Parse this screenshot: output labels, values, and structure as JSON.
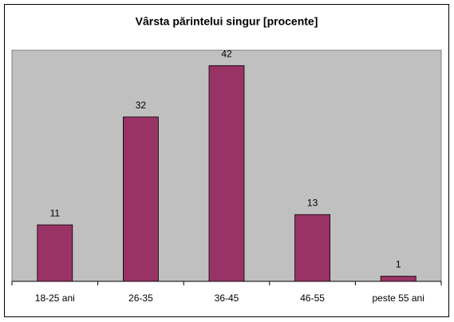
{
  "chart_data": {
    "type": "bar",
    "title": "Vârsta părintelui singur [procente]",
    "categories": [
      "18-25 ani",
      "26-35",
      "36-45",
      "46-55",
      "peste 55 ani"
    ],
    "values": [
      11,
      32,
      42,
      13,
      1
    ],
    "color": "#993366",
    "ylim": [
      0,
      45
    ]
  }
}
